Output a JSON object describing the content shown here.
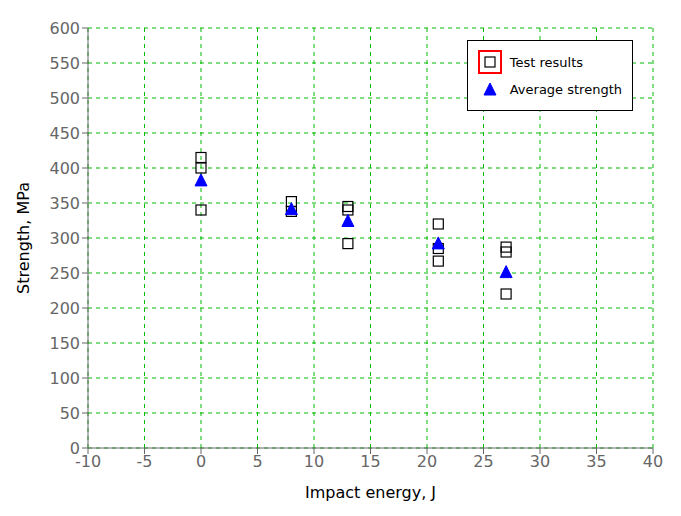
{
  "chart_data": {
    "type": "scatter",
    "xlabel": "Impact energy, J",
    "ylabel": "Strength, MPa",
    "xlim": [
      -10,
      40
    ],
    "ylim": [
      0,
      600
    ],
    "xticks": [
      -10,
      -5,
      0,
      5,
      10,
      15,
      20,
      25,
      30,
      35,
      40
    ],
    "yticks": [
      0,
      50,
      100,
      150,
      200,
      250,
      300,
      350,
      400,
      450,
      500,
      550,
      600
    ],
    "grid": true,
    "legend": "upper right",
    "series": [
      {
        "name": "Test results",
        "color": "black",
        "marker": "square",
        "x": [
          0,
          0,
          0,
          8,
          8,
          13,
          13,
          13,
          21,
          21,
          21,
          27,
          27,
          27
        ],
        "values": [
          415,
          400,
          340,
          352,
          338,
          345,
          340,
          292,
          320,
          285,
          267,
          280,
          220,
          287
        ]
      },
      {
        "name": "Average strength",
        "color": "blue",
        "marker": "triangle",
        "x": [
          0,
          8,
          13,
          21,
          27
        ],
        "values": [
          383,
          342,
          325,
          293,
          252
        ]
      }
    ]
  }
}
